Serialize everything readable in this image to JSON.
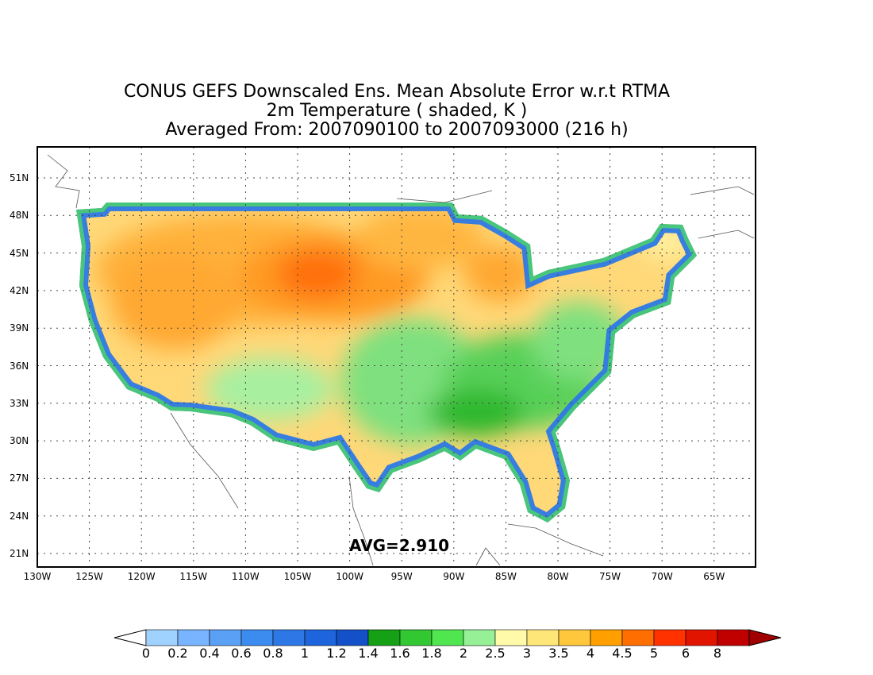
{
  "titles": {
    "line1": "CONUS GEFS Downscaled Ens. Mean Absolute Error w.r.t RTMA",
    "line2": "2m Temperature ( shaded, K )",
    "line3": "Averaged From: 2007090100 to 2007093000 (216 h)"
  },
  "avg_label": "AVG=2.910",
  "lat_labels": [
    "51N",
    "48N",
    "45N",
    "42N",
    "39N",
    "36N",
    "33N",
    "30N",
    "27N",
    "24N",
    "21N"
  ],
  "lon_labels": [
    "130W",
    "125W",
    "120W",
    "115W",
    "110W",
    "105W",
    "100W",
    "95W",
    "90W",
    "85W",
    "80W",
    "75W",
    "70W",
    "65W"
  ],
  "colorbar": {
    "labels": [
      "0",
      "0.2",
      "0.4",
      "0.6",
      "0.8",
      "1",
      "1.2",
      "1.4",
      "1.6",
      "1.8",
      "2",
      "2.5",
      "3",
      "3.5",
      "4",
      "4.5",
      "5",
      "6",
      "8"
    ],
    "colors": [
      "#a0d2ff",
      "#78b4ff",
      "#5aa0f5",
      "#3c8cf0",
      "#2d78e6",
      "#1e64dc",
      "#1450c8",
      "#16a016",
      "#32c832",
      "#50e650",
      "#96f096",
      "#fffaaa",
      "#ffe678",
      "#ffc83c",
      "#ffa000",
      "#ff6e00",
      "#ff3200",
      "#e11400",
      "#c00000"
    ],
    "under_color": "#ffffff",
    "over_color": "#a00000"
  }
}
